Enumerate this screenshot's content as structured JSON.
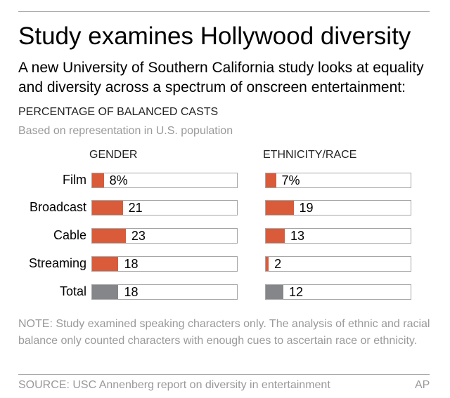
{
  "title": "Study examines Hollywood diversity",
  "subtitle": "A new University of Southern California study looks at equality and diversity across a spectrum of onscreen entertainment:",
  "section_title": "PERCENTAGE OF BALANCED CASTS",
  "section_subtitle": "Based on representation in U.S. population",
  "note": "NOTE: Study examined speaking characters only. The analysis of ethnic and racial balance only counted characters with enough cues to ascertain race or ethnicity.",
  "source": "SOURCE: USC Annenberg report on diversity in entertainment",
  "credit": "AP",
  "colors": {
    "highlight": "#d95b3a",
    "total": "#858689"
  },
  "chart_data": {
    "type": "bar",
    "orientation": "horizontal",
    "unit": "%",
    "xlim": [
      0,
      100
    ],
    "categories": [
      "Film",
      "Broadcast",
      "Cable",
      "Streaming",
      "Total"
    ],
    "series": [
      {
        "name": "GENDER",
        "values": [
          8,
          21,
          23,
          18,
          18
        ],
        "labels": [
          "8%",
          "21",
          "23",
          "18",
          "18"
        ]
      },
      {
        "name": "ETHNICITY/RACE",
        "values": [
          7,
          19,
          13,
          2,
          12
        ],
        "labels": [
          "7%",
          "19",
          "13",
          "2",
          "12"
        ]
      }
    ]
  }
}
